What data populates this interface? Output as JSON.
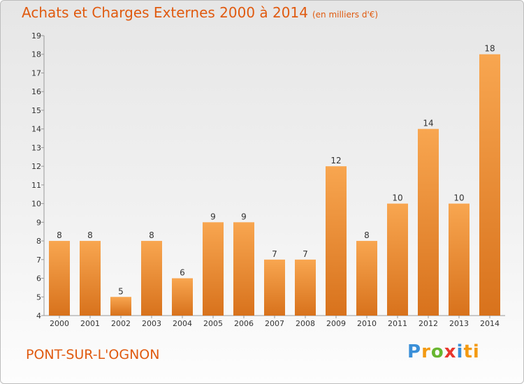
{
  "header": {
    "title": "Achats et Charges Externes 2000 à 2014",
    "subtitle": "(en milliers d'€)"
  },
  "footer": {
    "commune": "PONT-SUR-L'OGNON",
    "logo": [
      "P",
      "r",
      "o",
      "x",
      "i",
      "ti"
    ]
  },
  "colors": {
    "accent": "#e05a0f",
    "bar_light": "#f6a24e",
    "bar_dark": "#d9731e"
  },
  "chart_data": {
    "type": "bar",
    "categories": [
      "2000",
      "2001",
      "2002",
      "2003",
      "2004",
      "2005",
      "2006",
      "2007",
      "2008",
      "2009",
      "2010",
      "2011",
      "2012",
      "2013",
      "2014"
    ],
    "values": [
      8,
      8,
      5,
      8,
      6,
      9,
      9,
      7,
      7,
      12,
      8,
      10,
      14,
      10,
      18
    ],
    "data_labels": [
      "8",
      "8",
      "5",
      "8",
      "6",
      "9",
      "9",
      "7",
      "7",
      "12",
      "8",
      "10",
      "14",
      "10",
      "18"
    ],
    "yticks": [
      "4",
      "5",
      "6",
      "7",
      "8",
      "9",
      "10",
      "11",
      "12",
      "13",
      "14",
      "15",
      "16",
      "17",
      "18",
      "19"
    ],
    "ylim": [
      4,
      19
    ],
    "grid": false,
    "legend": false
  }
}
